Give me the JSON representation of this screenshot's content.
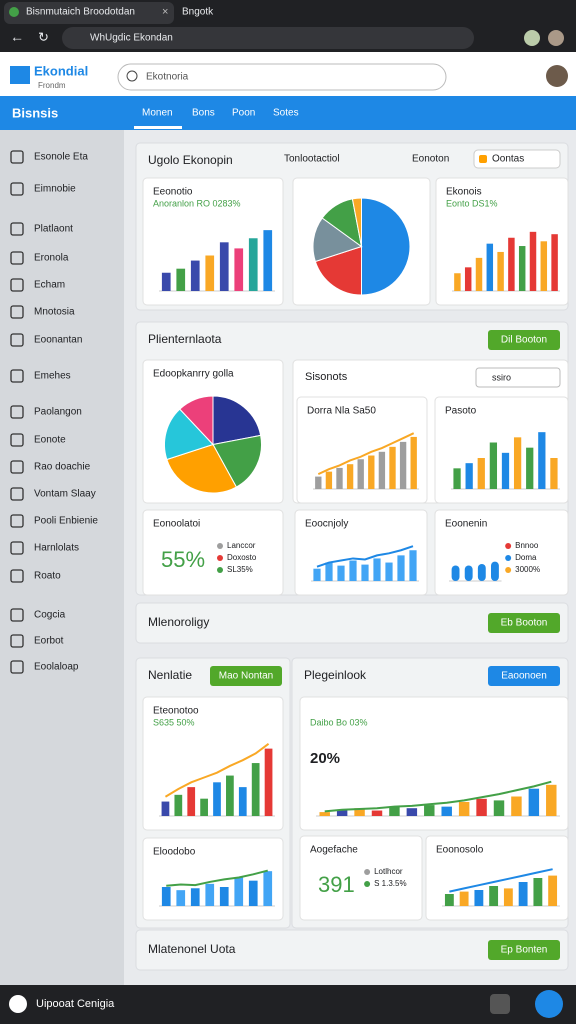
{
  "browser": {
    "tab_title": "Bisnmutaich Broodotdan",
    "tab2": "Bngotk",
    "url": "WhUgdic Ekondan"
  },
  "app": {
    "logo": "Ekondial",
    "logo_sub": "Frondm",
    "search": "Ekotnoria",
    "section": "Bisnsis",
    "tabs": [
      "Monen",
      "Bons",
      "Poon",
      "Sotes"
    ]
  },
  "sidebar": {
    "items": [
      "Esonole Eta",
      "Eimnobie",
      "Platlaont",
      "Eronola",
      "Echam",
      "Mnotosia",
      "Eoonantan",
      "Emehes",
      "Paolangon",
      "Eonote",
      "Rao doachie",
      "Vontam Slaay",
      "Pooli Enbienie",
      "Harnlolats",
      "Roato",
      "Cogcia",
      "Eorbot",
      "Eoolaloap"
    ]
  },
  "panels": [
    {
      "title": "Ugolo Ekonopin",
      "filters": [
        "Tonlootactiol",
        "Eonoton",
        "Oontas"
      ]
    },
    {
      "title": "Plienternlaota",
      "button": "Dil Booton",
      "button_color": "#52a82a",
      "subheader": "Sisonots",
      "search": "ssiro"
    },
    {
      "title": "Mlenoroligy",
      "button": "Eb Booton",
      "button_color": "#52a82a"
    },
    {
      "title": "Nenlatie",
      "button": "Mao Nontan",
      "button_color": "#52a82a"
    },
    {
      "title": "Plegeinlook",
      "button": "Eaoonoen",
      "button_color": "#1e88e5"
    },
    {
      "title": "Mlatenonel Uota",
      "button": "Ep Bonten",
      "button_color": "#52a82a"
    }
  ],
  "widgets": [
    {
      "title": "Eeonotio",
      "subtitle": "Anoranlon RO 0283%",
      "type": "bar",
      "ylim": [
        0,
        70
      ],
      "values": [
        18,
        22,
        30,
        35,
        48,
        42,
        52,
        60
      ],
      "colors": [
        "#3949ab",
        "#43a047",
        "#3949ab",
        "#f9a825",
        "#3949ab",
        "#ec407a",
        "#26a69a",
        "#1e88e5"
      ]
    },
    {
      "type": "pie",
      "values": [
        50,
        20,
        15,
        12,
        3
      ],
      "colors": [
        "#1e88e5",
        "#e53935",
        "#78909c",
        "#43a047",
        "#f9a825"
      ]
    },
    {
      "title": "Ekonois",
      "subtitle": "Eonto DS1%",
      "type": "bar",
      "ylim": [
        0,
        60
      ],
      "values": [
        15,
        20,
        28,
        40,
        33,
        45,
        38,
        50,
        42,
        48
      ],
      "colors": [
        "#f9a825",
        "#e53935",
        "#f9a825",
        "#1e88e5",
        "#f9a825",
        "#e53935",
        "#43a047",
        "#e53935",
        "#f9a825",
        "#e53935"
      ]
    },
    {
      "title": "Edoopkanrry golla",
      "type": "pie",
      "values": [
        22,
        20,
        28,
        18,
        12
      ],
      "colors": [
        "#283593",
        "#43a047",
        "#ffa000",
        "#26c6da",
        "#ec407a"
      ]
    },
    {
      "title": "Dorra Nla Sa50",
      "type": "barline",
      "ylim": [
        0,
        50
      ],
      "values": [
        10,
        14,
        17,
        20,
        24,
        27,
        30,
        34,
        38,
        42
      ],
      "colors": [
        "#9e9e9e",
        "#f9a825"
      ],
      "line": [
        12,
        16,
        19,
        23,
        26,
        30,
        33,
        37,
        41,
        45
      ],
      "line_color": "#f9a825"
    },
    {
      "title": "Pasoto",
      "type": "bar",
      "ylim": [
        0,
        60
      ],
      "values": [
        20,
        25,
        30,
        45,
        35,
        50,
        40,
        55,
        30
      ],
      "colors": [
        "#43a047",
        "#1e88e5",
        "#f9a825"
      ]
    },
    {
      "title": "Eonoolatoi",
      "type": "kpi",
      "kpi": "55%",
      "kpi_color": "#43a047",
      "legend": [
        "Lanccor",
        "Doxosto",
        "SL35%"
      ],
      "legend_colors": [
        "#9e9e9e",
        "#e53935",
        "#43a047"
      ]
    },
    {
      "title": "Eoocnjoly",
      "type": "barline",
      "ylim": [
        0,
        40
      ],
      "values": [
        12,
        18,
        15,
        20,
        16,
        22,
        18,
        25,
        30
      ],
      "colors": [
        "#42a5f5"
      ],
      "line": [
        14,
        18,
        20,
        22,
        21,
        25,
        27,
        30,
        34
      ],
      "line_color": "#1e88e5"
    },
    {
      "title": "Eoonenin",
      "type": "kpi",
      "kpi": "",
      "legend": [
        "Bnnoo",
        "Doma",
        "3000%"
      ],
      "legend_colors": [
        "#e53935",
        "#1e88e5",
        "#f9a825"
      ],
      "values": [
        20,
        20,
        22,
        25
      ],
      "ylim": [
        0,
        40
      ],
      "colors": [
        "#1e88e5"
      ]
    },
    {
      "title": "Eteonotoo",
      "subtitle": "S635 50%",
      "type": "barline",
      "ylim": [
        0,
        80
      ],
      "values": [
        15,
        22,
        30,
        18,
        35,
        42,
        30,
        55,
        70
      ],
      "colors": [
        "#3949ab",
        "#43a047",
        "#e53935",
        "#43a047",
        "#1e88e5",
        "#43a047",
        "#1e88e5",
        "#43a047",
        "#e53935"
      ],
      "line": [
        20,
        28,
        35,
        40,
        45,
        52,
        58,
        65,
        75
      ],
      "line_color": "#f9a825"
    },
    {
      "title": "Eloodobo",
      "type": "barline",
      "ylim": [
        0,
        60
      ],
      "values": [
        30,
        25,
        28,
        35,
        30,
        45,
        40,
        55
      ],
      "colors": [
        "#1e88e5",
        "#42a5f5"
      ],
      "line": [
        32,
        34,
        33,
        38,
        42,
        45,
        50,
        56
      ],
      "line_color": "#43a047"
    },
    {
      "title": "20%",
      "subtitle": "Daibo Bo 03%",
      "type": "barline",
      "ylim": [
        0,
        50
      ],
      "values": [
        5,
        8,
        10,
        7,
        12,
        10,
        14,
        12,
        18,
        22,
        20,
        25,
        35,
        40
      ],
      "colors": [
        "#f9a825",
        "#3949ab",
        "#f9a825",
        "#e53935",
        "#43a047",
        "#3949ab",
        "#43a047",
        "#1e88e5",
        "#f9a825",
        "#e53935",
        "#43a047",
        "#f9a825",
        "#1e88e5",
        "#f9a825"
      ],
      "line": [
        6,
        8,
        9,
        10,
        12,
        13,
        15,
        17,
        20,
        24,
        28,
        33,
        38,
        44
      ],
      "line_color": "#43a047"
    },
    {
      "title": "Aogefache",
      "type": "kpi",
      "kpi": "391",
      "kpi_color": "#43a047",
      "legend": [
        "Lotlhcor",
        "S 1.3.5%"
      ],
      "legend_colors": [
        "#9e9e9e",
        "#43a047"
      ]
    },
    {
      "title": "Eoonosolo",
      "type": "barline",
      "ylim": [
        0,
        50
      ],
      "values": [
        15,
        18,
        20,
        25,
        22,
        30,
        35,
        38
      ],
      "colors": [
        "#43a047",
        "#f9a825",
        "#1e88e5"
      ],
      "line": [
        18,
        22,
        26,
        30,
        34,
        38,
        42,
        46
      ],
      "line_color": "#1e88e5"
    }
  ],
  "footer": {
    "text": "Uipooat Cenigia"
  }
}
